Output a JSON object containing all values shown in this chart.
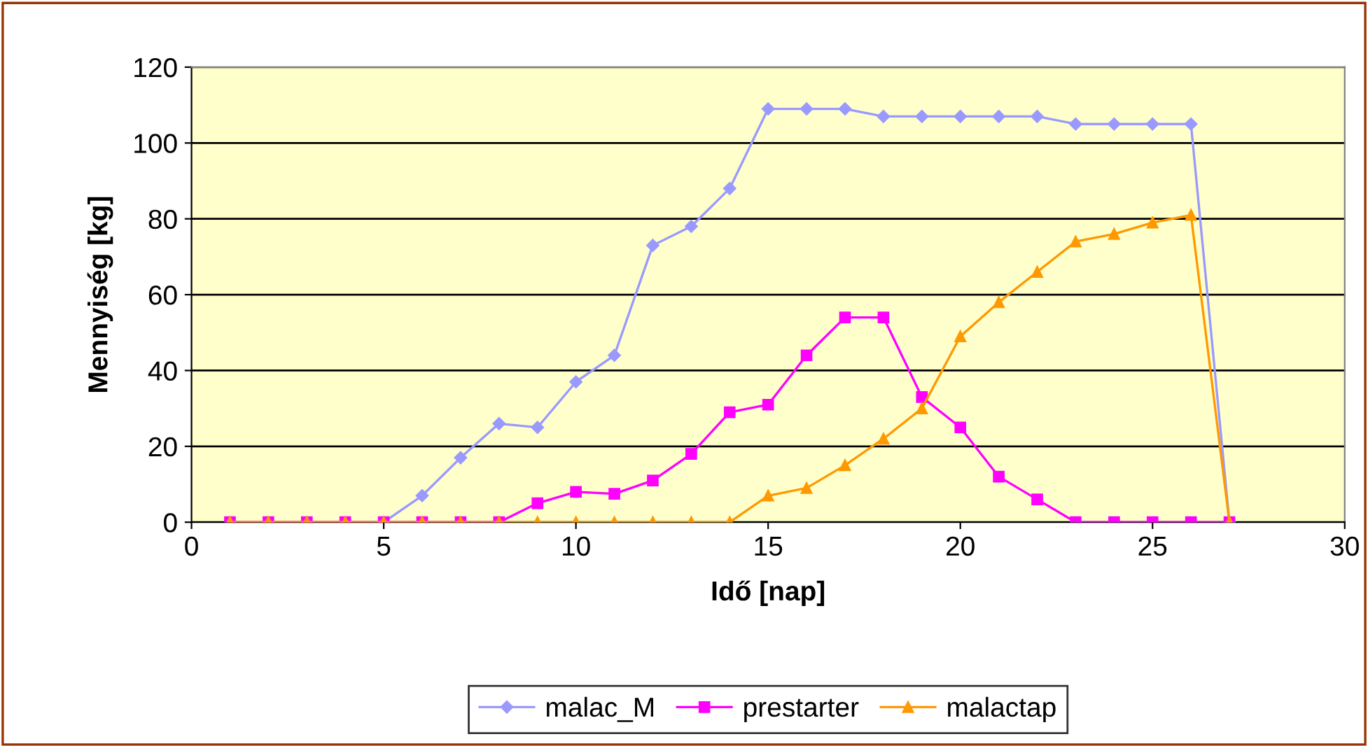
{
  "chart_data": {
    "type": "line",
    "xlabel": "Idő [nap]",
    "ylabel": "Mennyiség [kg]",
    "x": [
      1,
      2,
      3,
      4,
      5,
      6,
      7,
      8,
      9,
      10,
      11,
      12,
      13,
      14,
      15,
      16,
      17,
      18,
      19,
      20,
      21,
      22,
      23,
      24,
      25,
      26,
      27
    ],
    "series": [
      {
        "name": "malac_M",
        "color": "#9999ff",
        "marker": "diamond",
        "values": [
          null,
          null,
          null,
          null,
          0,
          7,
          17,
          26,
          25,
          37,
          44,
          73,
          78,
          88,
          109,
          109,
          109,
          107,
          107,
          107,
          107,
          107,
          105,
          105,
          105,
          105,
          0
        ]
      },
      {
        "name": "prestarter",
        "color": "#ff00ff",
        "marker": "square",
        "values": [
          0,
          0,
          0,
          0,
          0,
          0,
          0,
          0,
          5,
          8,
          7.5,
          11,
          18,
          29,
          31,
          44,
          54,
          54,
          33,
          25,
          12,
          6,
          0,
          0,
          0,
          0,
          0
        ]
      },
      {
        "name": "malactap",
        "color": "#ff9900",
        "marker": "triangle",
        "values": [
          0,
          0,
          0,
          0,
          0,
          0,
          0,
          0,
          0,
          0,
          0,
          0,
          0,
          0,
          7,
          9,
          15,
          22,
          30,
          49,
          58,
          66,
          74,
          76,
          79,
          81,
          0
        ]
      }
    ],
    "xlim": [
      0,
      30
    ],
    "xticks": [
      0,
      5,
      10,
      15,
      20,
      25,
      30
    ],
    "ylim": [
      0,
      120
    ],
    "yticks": [
      0,
      20,
      40,
      60,
      80,
      100,
      120
    ],
    "grid": "y",
    "legend": "bottom"
  }
}
